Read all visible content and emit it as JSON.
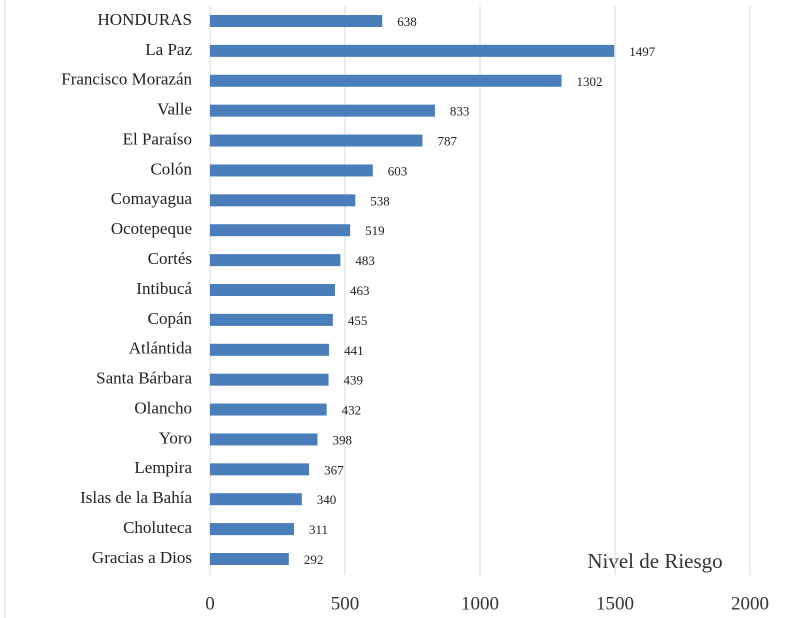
{
  "chart_data": {
    "type": "hbar",
    "x_label": "Nivel de Riesgo",
    "categories": [
      "HONDURAS",
      "La Paz",
      "Francisco Morazán",
      "Valle",
      "El Paraíso",
      "Colón",
      "Comayagua",
      "Ocotepeque",
      "Cortés",
      "Intibucá",
      "Copán",
      "Atlántida",
      "Santa Bárbara",
      "Olancho",
      "Yoro",
      "Lempira",
      "Islas de la Bahía",
      "Choluteca",
      "Gracias a Dios"
    ],
    "values": [
      638,
      1497,
      1302,
      833,
      787,
      603,
      538,
      519,
      483,
      463,
      455,
      441,
      439,
      432,
      398,
      367,
      340,
      311,
      292
    ],
    "color": "#4a7ebb",
    "xlim": [
      0,
      2000
    ],
    "xticks": [
      0,
      500,
      1000,
      1500,
      2000
    ],
    "grid": true
  }
}
